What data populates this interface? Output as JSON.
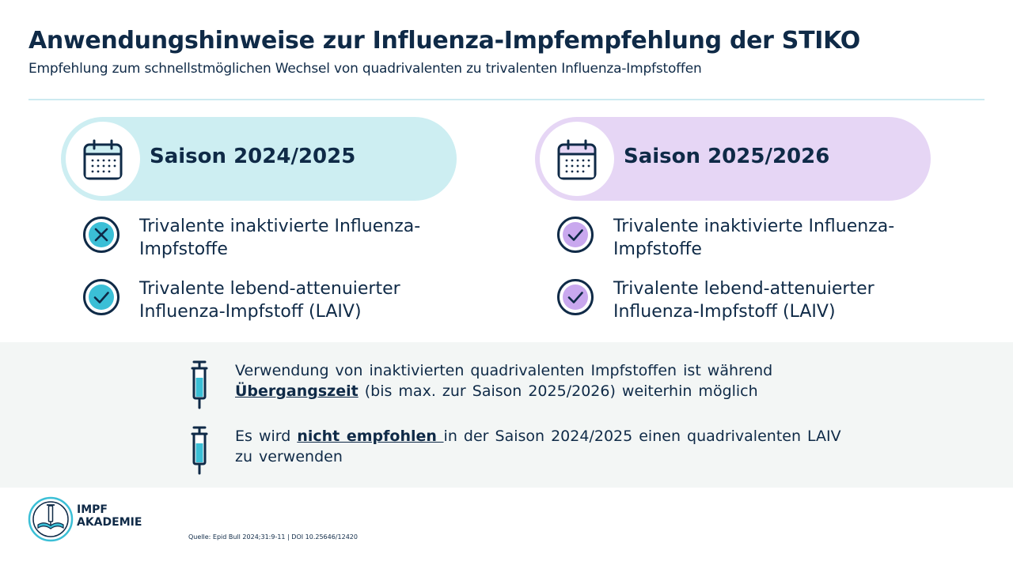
{
  "header": {
    "title": "Anwendungshinweise zur Influenza-Impfempfehlung der STIKO",
    "subtitle": "Empfehlung zum schnellstmöglichen Wechsel von quadrivalenten zu trivalenten Influenza-Impfstoffen"
  },
  "seasons": [
    {
      "label": "Saison 2024/2025",
      "color": "#cdeef2",
      "items": [
        {
          "line1": "Trivalente inaktivierte Influenza-",
          "line2": "Impfstoffe",
          "status": "not-recommended"
        },
        {
          "line1": "Trivalente lebend-attenuierter",
          "line2": "Influenza-Impfstoff (LAIV)",
          "status": "recommended"
        }
      ]
    },
    {
      "label": "Saison 2025/2026",
      "color": "#e6d6f5",
      "items": [
        {
          "line1": "Trivalente inaktivierte Influenza-",
          "line2": "Impfstoffe",
          "status": "recommended"
        },
        {
          "line1": "Trivalente lebend-attenuierter",
          "line2": "Influenza-Impfstoff (LAIV)",
          "status": "recommended"
        }
      ]
    }
  ],
  "notes": [
    {
      "icon": "syringe-icon",
      "line1": "Verwendung von inaktivierten quadrivalenten Impfstoffen ist während",
      "emphasis": "Übergangszeit",
      "rest": " (bis max. zur Saison 2025/2026) weiterhin möglich"
    },
    {
      "icon": "syringe-icon",
      "pre": "Es wird ",
      "emphasis": "nicht empfohlen ",
      "post": "in der Saison 2024/2025 einen quadrivalenten LAIV",
      "line2": "zu verwenden"
    }
  ],
  "logo": {
    "line1": "IMPF",
    "line2": "AKADEMIE"
  },
  "source": "Quelle: Epid Bull 2024;31:9-11 | DOI 10.25646/12420",
  "colors": {
    "navy": "#0f2a47",
    "teal": "#3bbfd6",
    "purple": "#c9a8ee",
    "band": "#f3f6f5"
  }
}
